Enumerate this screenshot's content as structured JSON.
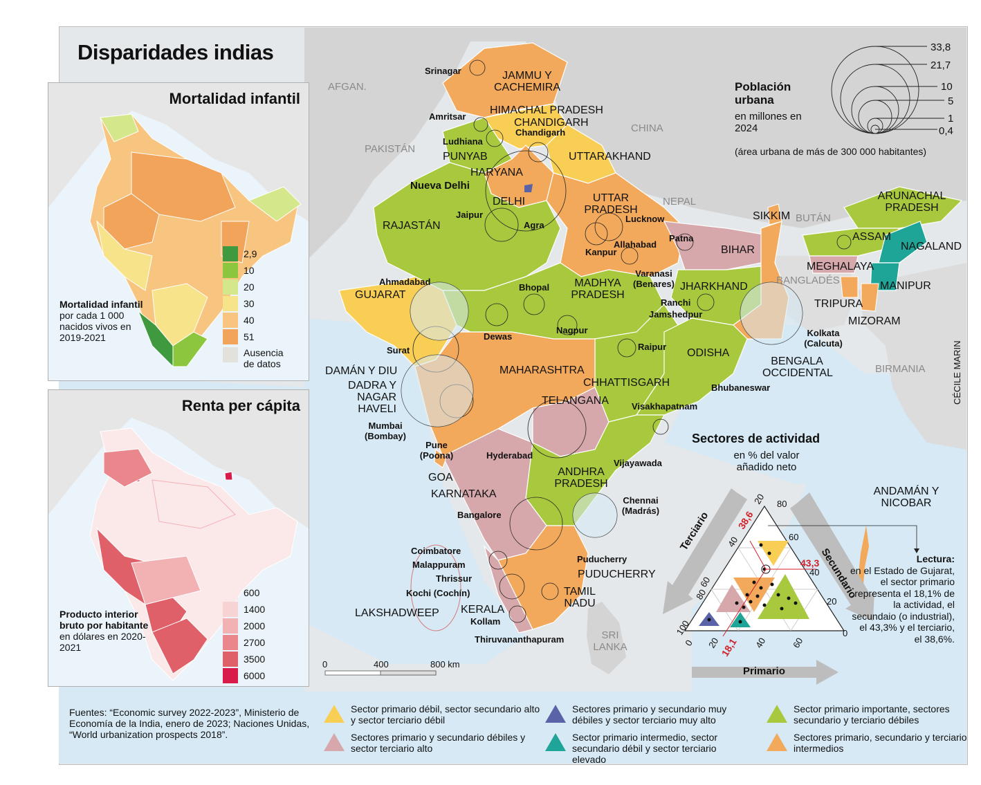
{
  "title": "Disparidades indias",
  "colors": {
    "orange": "#f3a95b",
    "yellow": "#f8cf54",
    "green": "#a8c93e",
    "pink": "#d7a8ab",
    "teal": "#1fa597",
    "blue": "#5a62a8",
    "sea": "#cfe6f3"
  },
  "mortality": {
    "title": "Mortalidad infantil",
    "legend": [
      {
        "label": "2,9",
        "color": "#3f9a3f"
      },
      {
        "label": "10",
        "color": "#8cc63e"
      },
      {
        "label": "20",
        "color": "#d4e78a"
      },
      {
        "label": "30",
        "color": "#f7e48a"
      },
      {
        "label": "40",
        "color": "#f7c57f"
      },
      {
        "label": "51",
        "color": "#f2a45a"
      },
      {
        "label": "Ausencia de datos",
        "color": "#e3e1dc"
      }
    ],
    "note_bold": "Mortalidad infantil",
    "note": "por cada 1 000 nacidos vivos en 2019-2021"
  },
  "income": {
    "title": "Renta per cápita",
    "legend": [
      {
        "label": "600",
        "color": "#fbe9ea"
      },
      {
        "label": "1400",
        "color": "#f7d3d4"
      },
      {
        "label": "2000",
        "color": "#f2b2b4"
      },
      {
        "label": "2700",
        "color": "#ea878c"
      },
      {
        "label": "3500",
        "color": "#e0606a"
      },
      {
        "label": "6000",
        "color": "#d81b4a"
      }
    ],
    "note_bold": "Producto interior bruto por habitante",
    "note": "en dólares en 2020-2021"
  },
  "population": {
    "title": "Población urbana",
    "subtitle": "en millones en 2024",
    "note": "(área urbana de más de 300 000 habitantes)",
    "sizes": [
      "33,8",
      "21,7",
      "10",
      "5",
      "1",
      "0,4"
    ]
  },
  "countries": [
    "AFGAN.",
    "PAKISTÁN",
    "CHINA",
    "NEPAL",
    "BUTÁN",
    "BANGLADÉS",
    "BIRMANIA",
    "SRI LANKA"
  ],
  "states": {
    "jammu": "JAMMU Y CACHEMIRA",
    "himachal": "HIMACHAL PRADESH",
    "chandigarh": "CHANDIGARH",
    "punyab": "PUNYAB",
    "haryana": "HARYANA",
    "uttarakhand": "UTTARAKHAND",
    "delhi": "DELHI",
    "uttar": "UTTAR PRADESH",
    "rajastan": "RAJASTÁN",
    "gujarat": "GUJARAT",
    "madhya": "MADHYA PRADESH",
    "bihar": "BIHAR",
    "jharkhand": "JHARKHAND",
    "sikkim": "SIKKIM",
    "arunachal": "ARUNACHAL PRADESH",
    "assam": "ASSAM",
    "nagaland": "NAGALAND",
    "meghalaya": "MEGHALAYA",
    "manipur": "MANIPUR",
    "tripura": "TRIPURA",
    "mizoram": "MIZORAM",
    "bengala": "BENGALA OCCIDENTAL",
    "odisha": "ODISHA",
    "chhattisgarh": "CHHATTISGARH",
    "maharashtra": "MAHARASHTRA",
    "daman": "DAMÁN Y DIU",
    "dadra": "DADRA Y NAGAR HAVELI",
    "telangana": "TELANGANA",
    "andhra": "ANDHRA PRADESH",
    "goa": "GOA",
    "karnataka": "KARNATAKA",
    "puducherry": "PUDUCHERRY",
    "tamil": "TAMIL NADU",
    "kerala": "KERALA",
    "lakshadweep": "LAKSHADWEEP",
    "andaman": "ANDAMÁN Y NICOBAR"
  },
  "capital": "Nueva Delhi",
  "cities": {
    "srinagar": "Srinagar",
    "amritsar": "Amritsar",
    "ludhiana": "Ludhiana",
    "chandigarh": "Chandigarh",
    "jaipur": "Jaipur",
    "agra": "Agra",
    "lucknow": "Lucknow",
    "kanpur": "Kanpur",
    "allahabad": "Allahabad",
    "patna": "Patna",
    "varanasi": "Varanasi (Benares)",
    "ranchi": "Ranchi",
    "jamshedpur": "Jamshedpur",
    "kolkata": "Kolkata (Calcuta)",
    "ahmadabad": "Ahmadabad",
    "bhopal": "Bhopal",
    "surat": "Surat",
    "dewas": "Dewas",
    "nagpur": "Nagpur",
    "raipur": "Raipur",
    "bhubaneswar": "Bhubaneswar",
    "visakhapatnam": "Visakhapatnam",
    "mumbai": "Mumbai (Bombay)",
    "pune": "Pune (Poona)",
    "hyderabad": "Hyderabad",
    "vijayawada": "Vijayawada",
    "chennai": "Chennai (Madrás)",
    "bangalore": "Bangalore",
    "coimbatore": "Coimbatore",
    "malappuram": "Malappuram",
    "thrissur": "Thrissur",
    "kochi": "Kochi (Cochín)",
    "kollam": "Kollam",
    "thiruvananthapuram": "Thiruvananthapuram",
    "puducherry": "Puducherry"
  },
  "scale": {
    "labels": [
      "0",
      "400",
      "800 km"
    ]
  },
  "ternary": {
    "title": "Sectores de actividad",
    "subtitle": "en % del valor añadido neto",
    "axis_terciario": "Terciario",
    "axis_secundario": "Secundario",
    "axis_primario": "Primario",
    "left_ticks": [
      "20",
      "40",
      "60",
      "80",
      "100"
    ],
    "right_ticks": [
      "80",
      "60",
      "40",
      "20",
      "0"
    ],
    "bottom_ticks": [
      "0",
      "20",
      "40",
      "60"
    ],
    "example": {
      "primario": "18,1",
      "secundario": "43,3",
      "terciario": "38,6"
    }
  },
  "reading": {
    "title": "Lectura:",
    "text": "en el Estado de Gujarat, el sector primario representa el 18,1% de la actividad, el secundaio (o industrial), el 43,3% y el terciario, el 38,6%."
  },
  "author": "CÉCILE MARIN",
  "sources": "Fuentes: “Economic survey 2022-2023”, Ministerio de Economía de la India, enero de 2023; Naciones Unidas, “World urbanization prospects 2018”.",
  "sector_legend": [
    {
      "label": "Sector primario débil, sector secundario alto y sector terciario débil",
      "color": "#f8cf54"
    },
    {
      "label": "Sectores primario y secundario débiles y sector terciario alto",
      "color": "#d7a8ab"
    },
    {
      "label": "Sectores primario y secundario muy débiles y sector terciario muy alto",
      "color": "#5a62a8"
    },
    {
      "label": "Sector primario intermedio, sector secundario débil y sector terciario elevado",
      "color": "#1fa597"
    },
    {
      "label": "Sector primario importante, sectores secundario y terciario débiles",
      "color": "#a8c93e"
    },
    {
      "label": "Sectores primario, secundario y terciario intermedios",
      "color": "#f3a95b"
    }
  ]
}
